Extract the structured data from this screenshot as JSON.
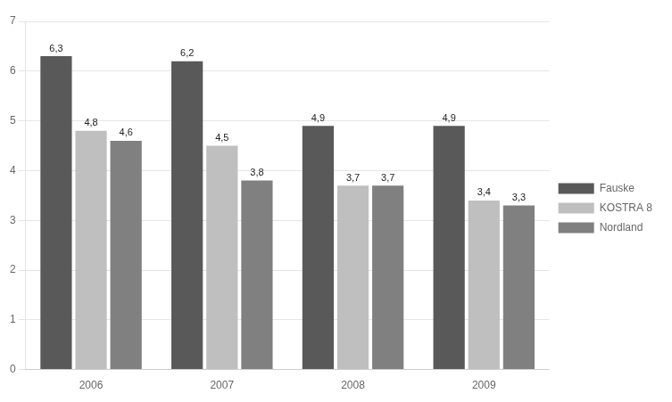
{
  "chart_data": {
    "type": "bar",
    "categories": [
      "2006",
      "2007",
      "2008",
      "2009"
    ],
    "series": [
      {
        "name": "Fauske",
        "color": "#595959",
        "values": [
          6.3,
          6.2,
          4.9,
          4.9
        ],
        "value_labels": [
          "6,3",
          "6,2",
          "4,9",
          "4,9"
        ]
      },
      {
        "name": "KOSTRA 8",
        "color": "#bfbfbf",
        "values": [
          4.8,
          4.5,
          3.7,
          3.4
        ],
        "value_labels": [
          "4,8",
          "4,5",
          "3,7",
          "3,4"
        ]
      },
      {
        "name": "Nordland",
        "color": "#808080",
        "values": [
          4.6,
          3.8,
          3.7,
          3.3
        ],
        "value_labels": [
          "4,6",
          "3,8",
          "3,7",
          "3,3"
        ]
      }
    ],
    "ylim": [
      0,
      7
    ],
    "yticks": [
      0,
      1,
      2,
      3,
      4,
      5,
      6,
      7
    ],
    "grid": true,
    "legend": "right",
    "data_labels": true
  }
}
